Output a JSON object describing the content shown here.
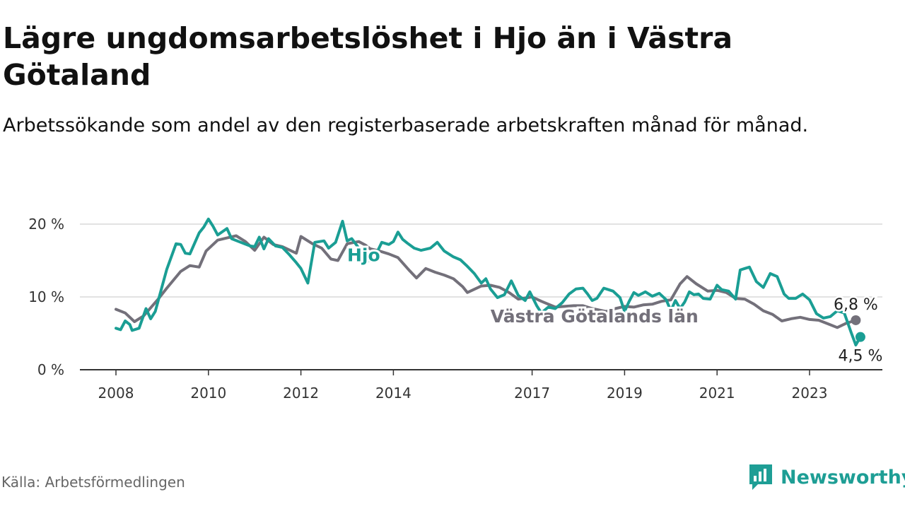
{
  "title": "Lägre ungdomsarbetslöshet i Hjo än i Västra Götaland",
  "subtitle": "Arbetssökande som andel av den registerbaserade arbetskraften månad för månad.",
  "source": "Källa: Arbetsförmedlingen",
  "brand": "Newsworthy",
  "colors": {
    "hjo": "#1a9e94",
    "vg": "#73707a",
    "grid": "#d9d9d9",
    "axis": "#333333"
  },
  "chart_data": {
    "type": "line",
    "title": "Lägre ungdomsarbetslöshet i Hjo än i Västra Götaland",
    "xlabel": "",
    "ylabel": "",
    "ylim": [
      0,
      20
    ],
    "xlim": [
      2008,
      2024.1
    ],
    "y_ticks": [
      {
        "v": 0,
        "label": "0 %"
      },
      {
        "v": 10,
        "label": "10 %"
      },
      {
        "v": 20,
        "label": "20 %"
      }
    ],
    "x_ticks": [
      {
        "v": 2008,
        "label": "2008"
      },
      {
        "v": 2010,
        "label": "2010"
      },
      {
        "v": 2012,
        "label": "2012"
      },
      {
        "v": 2014,
        "label": "2014"
      },
      {
        "v": 2017,
        "label": "2017"
      },
      {
        "v": 2019,
        "label": "2019"
      },
      {
        "v": 2021,
        "label": "2021"
      },
      {
        "v": 2023,
        "label": "2023"
      }
    ],
    "series": [
      {
        "name": "Västra Götalands län",
        "label": "Västra Götalands län",
        "end_label": "6,8 %",
        "color": "#73707a",
        "points": [
          [
            2008.0,
            8.3
          ],
          [
            2008.2,
            7.8
          ],
          [
            2008.4,
            6.6
          ],
          [
            2008.6,
            7.4
          ],
          [
            2008.9,
            9.6
          ],
          [
            2009.1,
            11.2
          ],
          [
            2009.4,
            13.5
          ],
          [
            2009.6,
            14.3
          ],
          [
            2009.8,
            14.1
          ],
          [
            2009.95,
            16.3
          ],
          [
            2010.2,
            17.8
          ],
          [
            2010.4,
            18.1
          ],
          [
            2010.6,
            18.4
          ],
          [
            2010.8,
            17.6
          ],
          [
            2011.0,
            16.4
          ],
          [
            2011.2,
            18.2
          ],
          [
            2011.4,
            17.2
          ],
          [
            2011.6,
            16.9
          ],
          [
            2011.9,
            16.0
          ],
          [
            2012.0,
            18.3
          ],
          [
            2012.25,
            17.3
          ],
          [
            2012.45,
            16.7
          ],
          [
            2012.65,
            15.2
          ],
          [
            2012.8,
            15.0
          ],
          [
            2013.0,
            17.3
          ],
          [
            2013.25,
            17.6
          ],
          [
            2013.4,
            17.1
          ],
          [
            2013.5,
            16.6
          ],
          [
            2013.7,
            16.3
          ],
          [
            2013.9,
            15.9
          ],
          [
            2014.1,
            15.4
          ],
          [
            2014.35,
            13.6
          ],
          [
            2014.5,
            12.6
          ],
          [
            2014.7,
            13.9
          ],
          [
            2014.9,
            13.4
          ],
          [
            2015.1,
            13.0
          ],
          [
            2015.3,
            12.5
          ],
          [
            2015.5,
            11.4
          ],
          [
            2015.6,
            10.6
          ],
          [
            2015.9,
            11.5
          ],
          [
            2016.1,
            11.6
          ],
          [
            2016.3,
            11.3
          ],
          [
            2016.5,
            10.6
          ],
          [
            2016.7,
            9.7
          ],
          [
            2017.0,
            10.0
          ],
          [
            2017.2,
            9.4
          ],
          [
            2017.5,
            8.6
          ],
          [
            2017.7,
            8.7
          ],
          [
            2017.9,
            8.8
          ],
          [
            2018.1,
            8.8
          ],
          [
            2018.3,
            8.4
          ],
          [
            2018.6,
            8.0
          ],
          [
            2018.8,
            8.4
          ],
          [
            2019.0,
            8.7
          ],
          [
            2019.2,
            8.6
          ],
          [
            2019.4,
            8.9
          ],
          [
            2019.6,
            9.0
          ],
          [
            2019.8,
            9.4
          ],
          [
            2020.0,
            9.6
          ],
          [
            2020.2,
            11.8
          ],
          [
            2020.35,
            12.8
          ],
          [
            2020.55,
            11.8
          ],
          [
            2020.8,
            10.8
          ],
          [
            2021.0,
            10.9
          ],
          [
            2021.2,
            10.6
          ],
          [
            2021.4,
            9.8
          ],
          [
            2021.6,
            9.7
          ],
          [
            2021.8,
            9.0
          ],
          [
            2022.0,
            8.1
          ],
          [
            2022.2,
            7.6
          ],
          [
            2022.4,
            6.7
          ],
          [
            2022.6,
            7.0
          ],
          [
            2022.8,
            7.2
          ],
          [
            2023.0,
            6.9
          ],
          [
            2023.2,
            6.8
          ],
          [
            2023.4,
            6.3
          ],
          [
            2023.6,
            5.8
          ],
          [
            2023.8,
            6.4
          ],
          [
            2024.0,
            6.8
          ]
        ]
      },
      {
        "name": "Hjo",
        "label": "Hjo",
        "end_label": "4,5 %",
        "color": "#1a9e94",
        "points": [
          [
            2008.0,
            5.7
          ],
          [
            2008.1,
            5.5
          ],
          [
            2008.2,
            6.7
          ],
          [
            2008.3,
            6.2
          ],
          [
            2008.35,
            5.4
          ],
          [
            2008.5,
            5.7
          ],
          [
            2008.65,
            8.4
          ],
          [
            2008.75,
            7.0
          ],
          [
            2008.85,
            8.0
          ],
          [
            2009.0,
            11.5
          ],
          [
            2009.1,
            13.8
          ],
          [
            2009.3,
            17.3
          ],
          [
            2009.4,
            17.2
          ],
          [
            2009.5,
            16.0
          ],
          [
            2009.6,
            15.9
          ],
          [
            2009.8,
            18.8
          ],
          [
            2009.9,
            19.6
          ],
          [
            2010.0,
            20.7
          ],
          [
            2010.1,
            19.7
          ],
          [
            2010.2,
            18.5
          ],
          [
            2010.4,
            19.4
          ],
          [
            2010.5,
            18.0
          ],
          [
            2010.7,
            17.5
          ],
          [
            2010.9,
            17.0
          ],
          [
            2011.0,
            16.9
          ],
          [
            2011.1,
            18.2
          ],
          [
            2011.2,
            16.6
          ],
          [
            2011.3,
            18.0
          ],
          [
            2011.45,
            17.0
          ],
          [
            2011.6,
            16.8
          ],
          [
            2011.75,
            15.8
          ],
          [
            2011.9,
            14.7
          ],
          [
            2012.0,
            13.9
          ],
          [
            2012.15,
            11.9
          ],
          [
            2012.3,
            17.5
          ],
          [
            2012.5,
            17.7
          ],
          [
            2012.6,
            16.7
          ],
          [
            2012.75,
            17.5
          ],
          [
            2012.9,
            20.4
          ],
          [
            2013.0,
            17.7
          ],
          [
            2013.1,
            18.0
          ],
          [
            2013.3,
            16.3
          ],
          [
            2013.45,
            15.0
          ],
          [
            2013.55,
            14.9
          ],
          [
            2013.75,
            17.5
          ],
          [
            2013.9,
            17.2
          ],
          [
            2014.0,
            17.6
          ],
          [
            2014.1,
            18.9
          ],
          [
            2014.2,
            17.9
          ],
          [
            2014.3,
            17.4
          ],
          [
            2014.45,
            16.7
          ],
          [
            2014.6,
            16.4
          ],
          [
            2014.8,
            16.7
          ],
          [
            2014.95,
            17.5
          ],
          [
            2015.1,
            16.3
          ],
          [
            2015.3,
            15.5
          ],
          [
            2015.45,
            15.1
          ],
          [
            2015.6,
            14.2
          ],
          [
            2015.75,
            13.2
          ],
          [
            2015.9,
            11.9
          ],
          [
            2016.0,
            12.5
          ],
          [
            2016.1,
            11.1
          ],
          [
            2016.25,
            9.9
          ],
          [
            2016.4,
            10.3
          ],
          [
            2016.55,
            12.2
          ],
          [
            2016.7,
            10.2
          ],
          [
            2016.85,
            9.5
          ],
          [
            2016.95,
            10.7
          ],
          [
            2017.1,
            8.8
          ],
          [
            2017.2,
            7.8
          ],
          [
            2017.35,
            8.6
          ],
          [
            2017.5,
            8.4
          ],
          [
            2017.65,
            9.2
          ],
          [
            2017.8,
            10.4
          ],
          [
            2017.95,
            11.1
          ],
          [
            2018.1,
            11.2
          ],
          [
            2018.2,
            10.4
          ],
          [
            2018.3,
            9.5
          ],
          [
            2018.4,
            9.8
          ],
          [
            2018.55,
            11.2
          ],
          [
            2018.65,
            11.0
          ],
          [
            2018.75,
            10.8
          ],
          [
            2018.9,
            9.9
          ],
          [
            2019.0,
            8.0
          ],
          [
            2019.1,
            9.4
          ],
          [
            2019.2,
            10.6
          ],
          [
            2019.3,
            10.2
          ],
          [
            2019.45,
            10.7
          ],
          [
            2019.6,
            10.1
          ],
          [
            2019.75,
            10.5
          ],
          [
            2019.9,
            9.6
          ],
          [
            2020.0,
            8.1
          ],
          [
            2020.1,
            9.5
          ],
          [
            2020.2,
            8.4
          ],
          [
            2020.3,
            9.3
          ],
          [
            2020.4,
            10.7
          ],
          [
            2020.5,
            10.3
          ],
          [
            2020.6,
            10.4
          ],
          [
            2020.7,
            9.8
          ],
          [
            2020.85,
            9.7
          ],
          [
            2021.0,
            11.6
          ],
          [
            2021.1,
            11.0
          ],
          [
            2021.25,
            10.8
          ],
          [
            2021.4,
            9.7
          ],
          [
            2021.5,
            13.7
          ],
          [
            2021.6,
            13.9
          ],
          [
            2021.7,
            14.1
          ],
          [
            2021.85,
            12.1
          ],
          [
            2022.0,
            11.3
          ],
          [
            2022.15,
            13.2
          ],
          [
            2022.3,
            12.8
          ],
          [
            2022.45,
            10.4
          ],
          [
            2022.55,
            9.8
          ],
          [
            2022.7,
            9.8
          ],
          [
            2022.85,
            10.4
          ],
          [
            2023.0,
            9.6
          ],
          [
            2023.15,
            7.7
          ],
          [
            2023.3,
            7.1
          ],
          [
            2023.45,
            7.3
          ],
          [
            2023.6,
            8.1
          ],
          [
            2023.75,
            7.8
          ],
          [
            2023.9,
            5.1
          ],
          [
            2024.0,
            3.4
          ],
          [
            2024.1,
            4.5
          ]
        ]
      }
    ]
  }
}
